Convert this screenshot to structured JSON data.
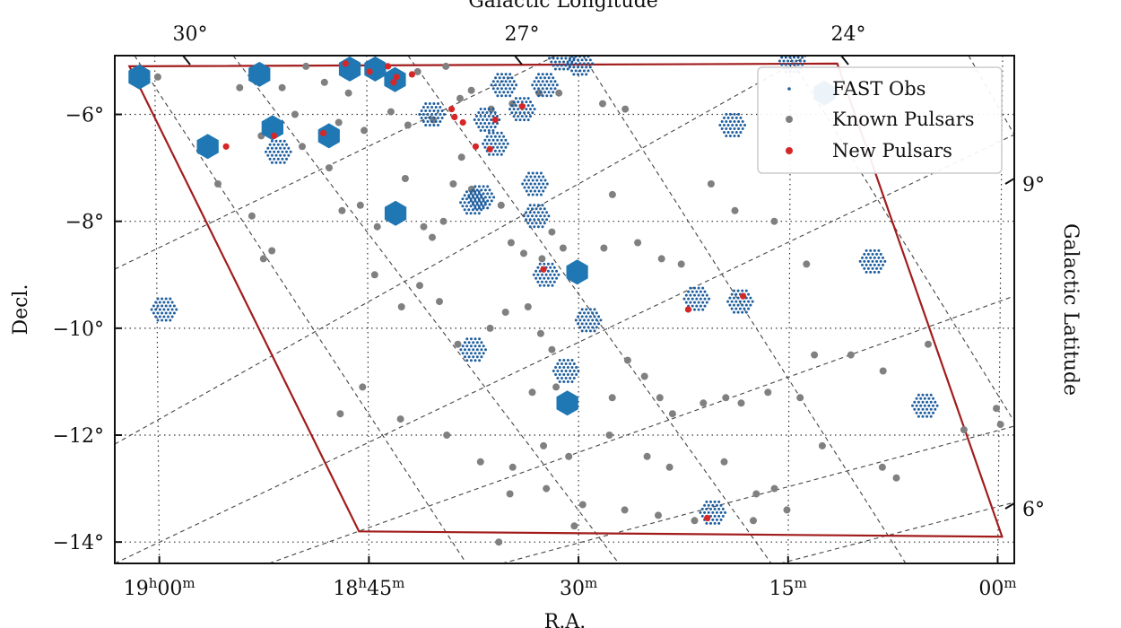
{
  "chart_data": {
    "type": "scatter",
    "projection": "equatorial RA/Dec with galactic coordinate overlay (dashed)",
    "xlabel": "R.A.",
    "ylabel": "Decl.",
    "top_label": "Galactic Longitude",
    "right_label": "Galactic Latitude",
    "x_ticks": [
      {
        "h": "19",
        "m": "00",
        "ra_min": 1140
      },
      {
        "h": "18",
        "m": "45",
        "ra_min": 1125
      },
      {
        "h": "",
        "m": "30",
        "ra_min": 1110
      },
      {
        "h": "",
        "m": "15",
        "ra_min": 1095
      },
      {
        "h": "",
        "m": "00",
        "ra_min": 1080
      }
    ],
    "y_ticks": [
      {
        "label": "−6°",
        "dec": -6
      },
      {
        "label": "−8°",
        "dec": -8
      },
      {
        "label": "−10°",
        "dec": -10
      },
      {
        "label": "−12°",
        "dec": -12
      },
      {
        "label": "−14°",
        "dec": -14
      }
    ],
    "top_ticks": [
      {
        "label": "30°",
        "l": 30
      },
      {
        "label": "27°",
        "l": 27
      },
      {
        "label": "24°",
        "l": 24
      }
    ],
    "right_ticks": [
      {
        "label": "9°",
        "b": 9
      },
      {
        "label": "6°",
        "b": 6
      }
    ],
    "xlim_ra_min": [
      1143,
      1079
    ],
    "ylim_dec": [
      -14.4,
      -4.9
    ],
    "grid": true,
    "legend_position": "top-right",
    "legend": [
      {
        "label": "FAST Obs",
        "marker": "tiny-dot",
        "color": "#1f5f9f"
      },
      {
        "label": "Known Pulsars",
        "marker": "dot",
        "color": "#7f7f7f"
      },
      {
        "label": "New Pulsars",
        "marker": "dot",
        "color": "#d62728"
      }
    ],
    "survey_region": {
      "color": "#a21c1c",
      "vertices": [
        {
          "ra_min": 1141.8,
          "dec": -5.1
        },
        {
          "ra_min": 1091.7,
          "dec": -5.05
        },
        {
          "ra_min": 1079.7,
          "dec": -13.9
        },
        {
          "ra_min": 1125.7,
          "dec": -13.8
        }
      ]
    },
    "series": [
      {
        "name": "FAST Obs",
        "color": "#1f77b4",
        "filled_pointings": [
          {
            "ra_min": 1141.1,
            "dec": -5.3
          },
          {
            "ra_min": 1132.6,
            "dec": -5.25
          },
          {
            "ra_min": 1126.2,
            "dec": -5.15
          },
          {
            "ra_min": 1124.4,
            "dec": -5.15
          },
          {
            "ra_min": 1123.0,
            "dec": -5.35
          },
          {
            "ra_min": 1131.7,
            "dec": -6.25
          },
          {
            "ra_min": 1127.7,
            "dec": -6.4
          },
          {
            "ra_min": 1136.3,
            "dec": -6.6
          },
          {
            "ra_min": 1123.0,
            "dec": -7.85
          },
          {
            "ra_min": 1110.1,
            "dec": -8.95
          },
          {
            "ra_min": 1110.8,
            "dec": -11.4
          },
          {
            "ra_min": 1092.6,
            "dec": -5.6
          }
        ],
        "open_pointings": [
          {
            "ra_min": 1131.3,
            "dec": -6.7
          },
          {
            "ra_min": 1120.4,
            "dec": -6.0
          },
          {
            "ra_min": 1115.3,
            "dec": -5.45
          },
          {
            "ra_min": 1114.0,
            "dec": -5.9
          },
          {
            "ra_min": 1116.5,
            "dec": -6.1
          },
          {
            "ra_min": 1115.9,
            "dec": -6.55
          },
          {
            "ra_min": 1112.4,
            "dec": -5.45
          },
          {
            "ra_min": 1109.9,
            "dec": -5.05
          },
          {
            "ra_min": 1111.2,
            "dec": -4.95
          },
          {
            "ra_min": 1099.1,
            "dec": -6.2
          },
          {
            "ra_min": 1094.9,
            "dec": -5.0
          },
          {
            "ra_min": 1117.5,
            "dec": -7.65
          },
          {
            "ra_min": 1116.9,
            "dec": -7.55
          },
          {
            "ra_min": 1113.0,
            "dec": -7.9
          },
          {
            "ra_min": 1113.1,
            "dec": -7.3
          },
          {
            "ra_min": 1139.5,
            "dec": -9.65
          },
          {
            "ra_min": 1117.5,
            "dec": -10.4
          },
          {
            "ra_min": 1112.3,
            "dec": -9.0
          },
          {
            "ra_min": 1109.3,
            "dec": -9.85
          },
          {
            "ra_min": 1110.9,
            "dec": -10.8
          },
          {
            "ra_min": 1101.6,
            "dec": -9.45
          },
          {
            "ra_min": 1098.5,
            "dec": -9.5
          },
          {
            "ra_min": 1089.1,
            "dec": -8.75
          },
          {
            "ra_min": 1085.3,
            "dec": -11.45
          },
          {
            "ra_min": 1100.4,
            "dec": -13.45
          }
        ]
      },
      {
        "name": "Known Pulsars",
        "color": "#808080",
        "points": [
          [
            1139.8,
            -5.3
          ],
          [
            1134.0,
            -5.5
          ],
          [
            1131.0,
            -5.5
          ],
          [
            1129.3,
            -5.1
          ],
          [
            1128.0,
            -5.4
          ],
          [
            1126.3,
            -5.6
          ],
          [
            1121.4,
            -5.2
          ],
          [
            1119.4,
            -5.1
          ],
          [
            1132.5,
            -6.4
          ],
          [
            1130.1,
            -6.0
          ],
          [
            1129.6,
            -6.6
          ],
          [
            1127.0,
            -6.15
          ],
          [
            1125.2,
            -6.3
          ],
          [
            1123.3,
            -5.95
          ],
          [
            1122.1,
            -6.2
          ],
          [
            1120.3,
            -6.1
          ],
          [
            1118.4,
            -5.7
          ],
          [
            1117.6,
            -5.55
          ],
          [
            1116.2,
            -5.9
          ],
          [
            1114.7,
            -5.8
          ],
          [
            1112.8,
            -5.6
          ],
          [
            1111.4,
            -5.6
          ],
          [
            1108.3,
            -5.8
          ],
          [
            1106.7,
            -5.9
          ],
          [
            1135.6,
            -7.3
          ],
          [
            1133.2,
            -7.9
          ],
          [
            1131.8,
            -8.55
          ],
          [
            1132.4,
            -8.7
          ],
          [
            1127.7,
            -7.0
          ],
          [
            1126.8,
            -7.8
          ],
          [
            1125.5,
            -7.7
          ],
          [
            1124.3,
            -8.1
          ],
          [
            1122.3,
            -7.2
          ],
          [
            1121.0,
            -8.1
          ],
          [
            1120.4,
            -8.3
          ],
          [
            1119.6,
            -8.0
          ],
          [
            1118.9,
            -7.3
          ],
          [
            1118.3,
            -6.8
          ],
          [
            1117.6,
            -7.4
          ],
          [
            1115.5,
            -7.7
          ],
          [
            1114.8,
            -8.4
          ],
          [
            1113.9,
            -8.6
          ],
          [
            1112.6,
            -8.7
          ],
          [
            1111.9,
            -8.2
          ],
          [
            1111.1,
            -8.5
          ],
          [
            1108.2,
            -8.5
          ],
          [
            1107.6,
            -7.5
          ],
          [
            1105.8,
            -8.4
          ],
          [
            1104.1,
            -8.7
          ],
          [
            1102.7,
            -8.8
          ],
          [
            1100.6,
            -7.3
          ],
          [
            1098.9,
            -7.8
          ],
          [
            1096.1,
            -8.0
          ],
          [
            1093.8,
            -8.8
          ],
          [
            1124.5,
            -9.0
          ],
          [
            1122.6,
            -9.6
          ],
          [
            1121.3,
            -9.2
          ],
          [
            1119.9,
            -9.5
          ],
          [
            1118.6,
            -10.3
          ],
          [
            1116.3,
            -10.0
          ],
          [
            1115.2,
            -9.7
          ],
          [
            1113.6,
            -9.6
          ],
          [
            1112.7,
            -10.1
          ],
          [
            1111.9,
            -10.4
          ],
          [
            1113.3,
            -11.2
          ],
          [
            1111.6,
            -11.1
          ],
          [
            1107.6,
            -11.3
          ],
          [
            1106.5,
            -10.6
          ],
          [
            1105.3,
            -10.9
          ],
          [
            1104.2,
            -11.3
          ],
          [
            1103.3,
            -11.6
          ],
          [
            1101.1,
            -11.4
          ],
          [
            1099.5,
            -11.3
          ],
          [
            1098.4,
            -11.4
          ],
          [
            1096.5,
            -11.2
          ],
          [
            1094.2,
            -11.3
          ],
          [
            1093.2,
            -10.5
          ],
          [
            1090.6,
            -10.5
          ],
          [
            1088.3,
            -10.8
          ],
          [
            1082.5,
            -11.9
          ],
          [
            1127.0,
            -11.6
          ],
          [
            1125.4,
            -11.1
          ],
          [
            1122.7,
            -11.7
          ],
          [
            1119.4,
            -12.0
          ],
          [
            1117.0,
            -12.5
          ],
          [
            1114.7,
            -12.6
          ],
          [
            1112.5,
            -12.2
          ],
          [
            1110.7,
            -12.4
          ],
          [
            1107.8,
            -12.0
          ],
          [
            1105.1,
            -12.4
          ],
          [
            1103.5,
            -12.6
          ],
          [
            1099.6,
            -12.5
          ],
          [
            1097.3,
            -13.1
          ],
          [
            1095.1,
            -13.4
          ],
          [
            1092.6,
            -12.2
          ],
          [
            1088.3,
            -12.6
          ],
          [
            1087.3,
            -12.8
          ],
          [
            1114.9,
            -13.1
          ],
          [
            1112.3,
            -13.0
          ],
          [
            1109.7,
            -13.3
          ],
          [
            1106.7,
            -13.4
          ],
          [
            1104.3,
            -13.5
          ],
          [
            1101.7,
            -13.6
          ],
          [
            1097.5,
            -13.6
          ],
          [
            1115.7,
            -14.0
          ],
          [
            1110.3,
            -13.7
          ],
          [
            1096.0,
            -13.0
          ],
          [
            1085.1,
            -10.3
          ],
          [
            1079.9,
            -11.8
          ],
          [
            1080.2,
            -11.5
          ]
        ]
      },
      {
        "name": "New Pulsars",
        "color": "#d62728",
        "points": [
          [
            1126.5,
            -5.05
          ],
          [
            1124.8,
            -5.2
          ],
          [
            1123.5,
            -5.1
          ],
          [
            1123.1,
            -5.4
          ],
          [
            1122.9,
            -5.3
          ],
          [
            1121.8,
            -5.25
          ],
          [
            1119.0,
            -5.9
          ],
          [
            1118.8,
            -6.05
          ],
          [
            1118.2,
            -6.15
          ],
          [
            1117.3,
            -6.6
          ],
          [
            1116.3,
            -6.65
          ],
          [
            1115.9,
            -6.1
          ],
          [
            1114.0,
            -5.85
          ],
          [
            1135.0,
            -6.6
          ],
          [
            1131.6,
            -6.4
          ],
          [
            1128.1,
            -6.35
          ],
          [
            1112.5,
            -8.9
          ],
          [
            1102.2,
            -9.65
          ],
          [
            1098.3,
            -9.4
          ],
          [
            1100.8,
            -13.55
          ]
        ]
      }
    ]
  }
}
